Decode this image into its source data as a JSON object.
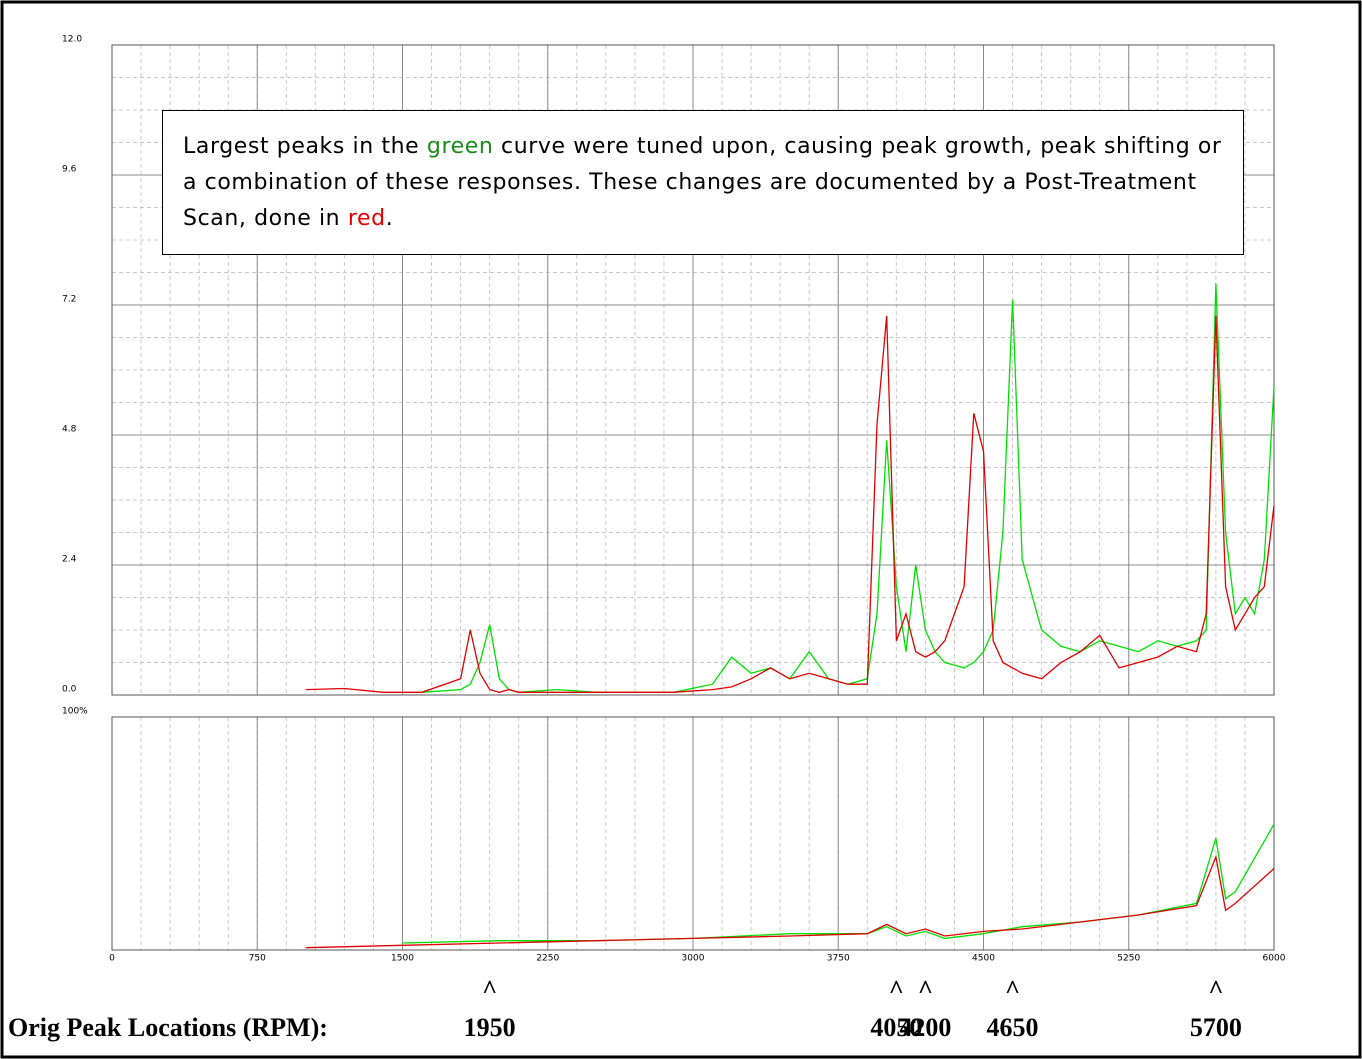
{
  "chart_data": [
    {
      "type": "line",
      "x": [
        1000,
        1200,
        1400,
        1600,
        1800,
        1850,
        1900,
        1950,
        2000,
        2050,
        2100,
        2300,
        2500,
        2700,
        2900,
        3100,
        3200,
        3300,
        3400,
        3500,
        3600,
        3700,
        3800,
        3900,
        3950,
        4000,
        4050,
        4100,
        4150,
        4200,
        4250,
        4300,
        4400,
        4450,
        4500,
        4550,
        4600,
        4650,
        4700,
        4800,
        4900,
        5000,
        5100,
        5200,
        5300,
        5400,
        5500,
        5600,
        5650,
        5700,
        5750,
        5800,
        5850,
        5900,
        5950,
        6000
      ],
      "series": [
        {
          "name": "green",
          "color": "#00e000",
          "values": [
            null,
            null,
            null,
            0.05,
            0.1,
            0.2,
            0.6,
            1.3,
            0.3,
            0.1,
            0.05,
            0.1,
            0.05,
            0.05,
            0.05,
            0.2,
            0.7,
            0.4,
            0.5,
            0.3,
            0.8,
            0.3,
            0.2,
            0.3,
            1.5,
            4.7,
            2.0,
            0.8,
            2.4,
            1.2,
            0.8,
            0.6,
            0.5,
            0.6,
            0.8,
            1.2,
            3.0,
            7.3,
            2.5,
            1.2,
            0.9,
            0.8,
            1.0,
            0.9,
            0.8,
            1.0,
            0.9,
            1.0,
            1.2,
            7.6,
            3.0,
            1.5,
            1.8,
            1.5,
            2.5,
            5.7
          ]
        },
        {
          "name": "red",
          "color": "#e00000",
          "values": [
            0.1,
            0.12,
            0.05,
            0.05,
            0.3,
            1.2,
            0.4,
            0.1,
            0.05,
            0.1,
            0.05,
            0.05,
            0.05,
            0.05,
            0.05,
            0.1,
            0.15,
            0.3,
            0.5,
            0.3,
            0.4,
            0.3,
            0.2,
            0.2,
            5.0,
            7.0,
            1.0,
            1.5,
            0.8,
            0.7,
            0.8,
            1.0,
            2.0,
            5.2,
            4.5,
            1.0,
            0.6,
            0.5,
            0.4,
            0.3,
            0.6,
            0.8,
            1.1,
            0.5,
            0.6,
            0.7,
            0.9,
            0.8,
            1.5,
            7.0,
            2.0,
            1.2,
            1.5,
            1.8,
            2.0,
            3.5
          ]
        }
      ],
      "xlim": [
        0,
        6000
      ],
      "ylim": [
        0,
        12
      ],
      "yticks": [
        {
          "value": 0,
          "label": "0.0"
        },
        2.4,
        4.8,
        7.2,
        9.6,
        {
          "value": 12,
          "label": "12.0"
        }
      ],
      "grid": true
    },
    {
      "type": "line",
      "x": [
        1000,
        1500,
        2000,
        2500,
        3000,
        3500,
        3900,
        4000,
        4100,
        4200,
        4300,
        4500,
        4700,
        5000,
        5300,
        5600,
        5700,
        5750,
        5800,
        6000
      ],
      "series": [
        {
          "name": "green",
          "color": "#00e000",
          "values": [
            null,
            3,
            4,
            4,
            5,
            7,
            7,
            10,
            6,
            8,
            5,
            7,
            10,
            12,
            15,
            20,
            48,
            22,
            25,
            54
          ]
        },
        {
          "name": "red",
          "color": "#e00000",
          "values": [
            1,
            2,
            3,
            4,
            5,
            6,
            7,
            11,
            7,
            9,
            6,
            8,
            9,
            12,
            15,
            19,
            40,
            17,
            20,
            35
          ]
        }
      ],
      "xlim": [
        0,
        6000
      ],
      "xticks": [
        0,
        750,
        1500,
        2250,
        3000,
        3750,
        4500,
        5250,
        6000
      ],
      "ylim": [
        0,
        100
      ],
      "yticks": [
        {
          "value": 100,
          "label": "100%"
        }
      ],
      "grid": true
    }
  ],
  "annotation": {
    "parts": [
      "Largest peaks in the ",
      "green",
      " curve were tuned upon, causing peak growth, peak shifting or a combination of these responses.  These changes are documented by a Post-Treatment Scan, done in ",
      "red",
      "."
    ]
  },
  "peak_markers": {
    "label": "Orig Peak Locations (RPM):",
    "symbol": "^",
    "values": [
      1950,
      4050,
      4200,
      4650,
      5700
    ]
  }
}
